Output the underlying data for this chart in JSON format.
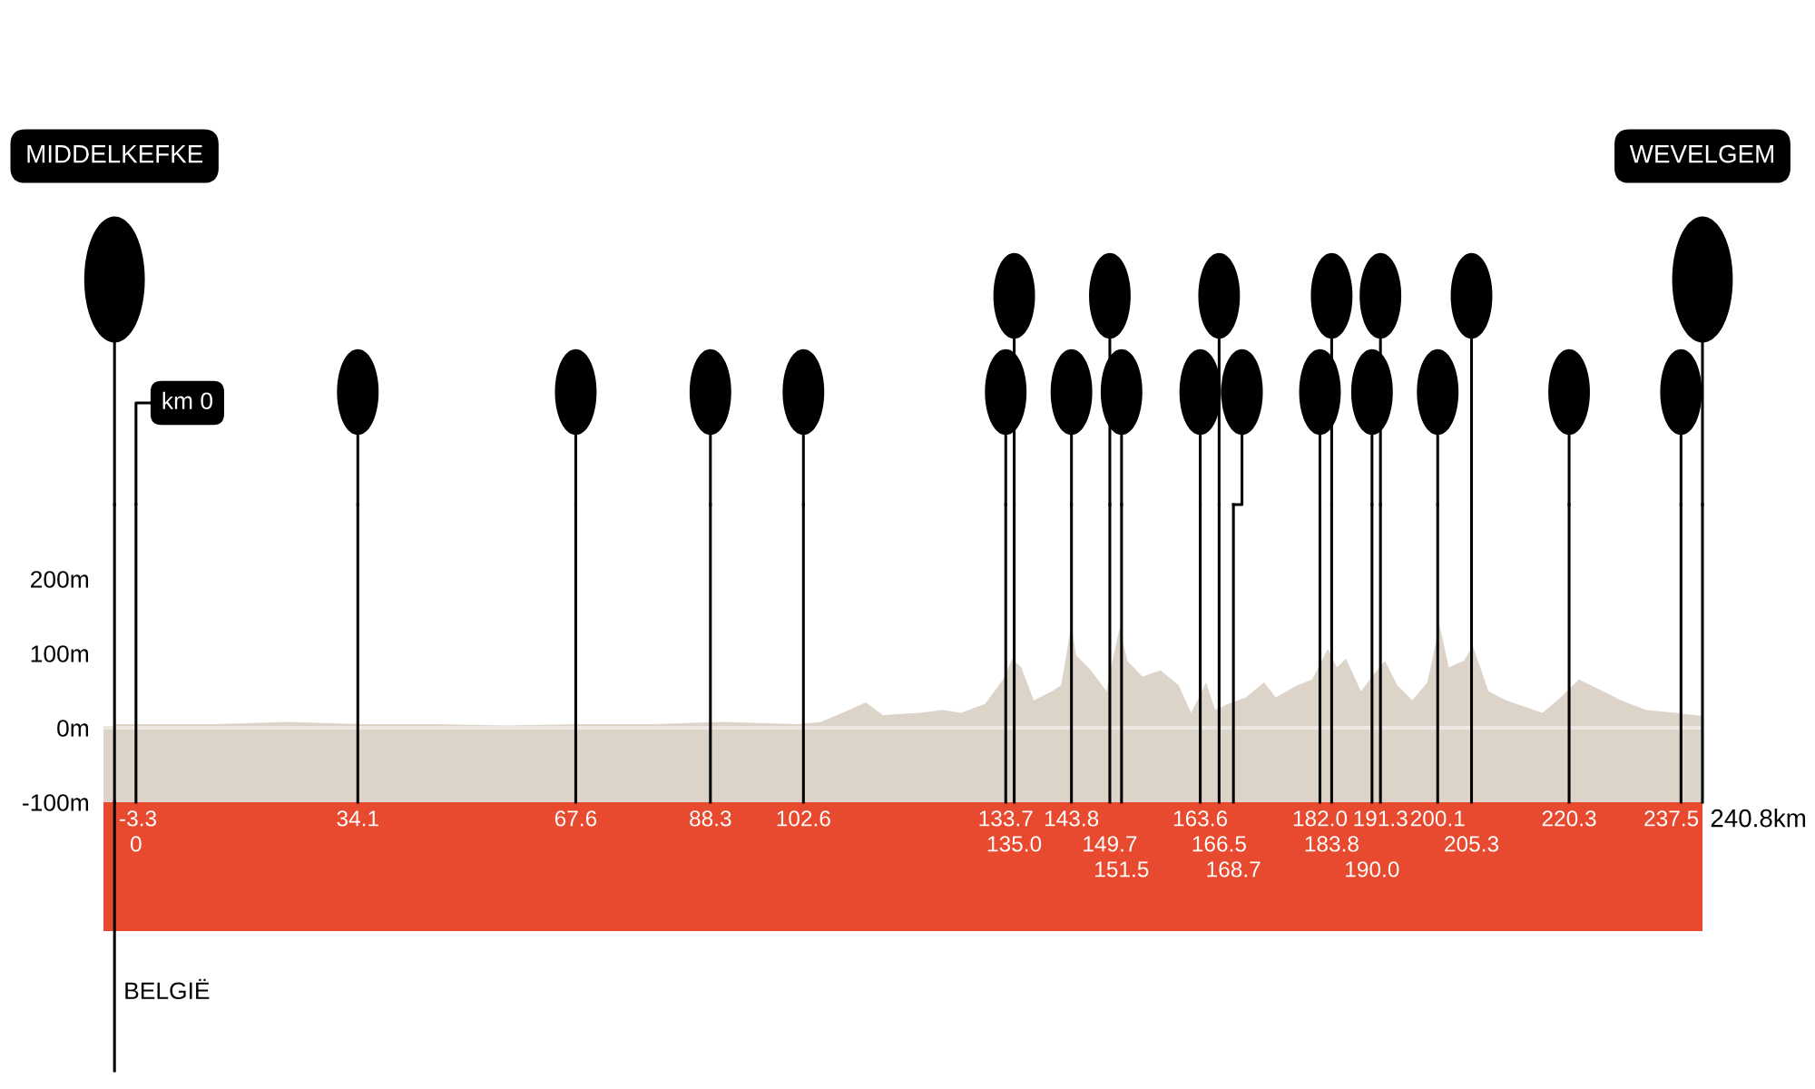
{
  "chart_data": {
    "type": "area",
    "color": "#dcd3c9",
    "x": [
      -3.3,
      0,
      12.2,
      23.4,
      34.6,
      45.8,
      56.9,
      68.1,
      79.3,
      90.5,
      101.6,
      105.3,
      108.6,
      112.2,
      114.8,
      120.4,
      124.0,
      126.8,
      130.5,
      133.3,
      134.7,
      136.1,
      138.0,
      140.8,
      142.2,
      143.8,
      144.5,
      146.8,
      149.2,
      150.1,
      151.2,
      152.4,
      154.7,
      157.5,
      160.3,
      162.2,
      164.5,
      165.9,
      167.8,
      170.6,
      173.4,
      175.2,
      178.5,
      180.8,
      183.2,
      184.6,
      186.0,
      188.3,
      191.1,
      192.0,
      193.9,
      196.2,
      198.5,
      200.4,
      201.8,
      204.1,
      205.5,
      207.9,
      210.6,
      216.2,
      219.0,
      221.8,
      224.6,
      228.3,
      232.1,
      236.7,
      240.8
    ],
    "values": [
      5,
      5,
      5,
      8,
      5,
      5,
      3,
      5,
      5,
      8,
      5,
      8,
      20,
      34,
      17,
      20,
      24,
      20,
      32,
      65,
      93,
      81,
      37,
      49,
      57,
      138,
      98,
      77,
      49,
      90,
      134,
      90,
      69,
      77,
      57,
      20,
      61,
      24,
      32,
      41,
      61,
      41,
      57,
      65,
      106,
      81,
      93,
      49,
      81,
      90,
      57,
      37,
      61,
      138,
      81,
      90,
      110,
      49,
      37,
      20,
      41,
      65,
      53,
      37,
      24,
      20,
      16
    ],
    "xlim": [
      -5,
      240.8
    ],
    "ylim": [
      -100,
      300
    ],
    "yticks": [
      {
        "value": -100,
        "label": "-100m"
      },
      {
        "value": 0,
        "label": "0m"
      },
      {
        "value": 100,
        "label": "100m"
      },
      {
        "value": 200,
        "label": "200m"
      }
    ],
    "tick_labels": "y",
    "bands": [
      {
        "axis": "y",
        "from": -100,
        "to": 0,
        "color": "#dcd3c9"
      }
    ],
    "ref_lines": [
      {
        "axis": "y",
        "value": 0,
        "color": "#ece7e1"
      },
      {
        "axis": "x",
        "value": -3.3,
        "label": "-3.3"
      },
      {
        "axis": "x",
        "value": 0,
        "label": "0"
      },
      {
        "axis": "x",
        "value": 34.1,
        "label": "34.1"
      },
      {
        "axis": "x",
        "value": 67.6,
        "label": "67.6"
      },
      {
        "axis": "x",
        "value": 88.3,
        "label": "88.3"
      },
      {
        "axis": "x",
        "value": 102.6,
        "label": "102.6"
      },
      {
        "axis": "x",
        "value": 133.7,
        "label": "133.7"
      },
      {
        "axis": "x",
        "value": 135.0,
        "label": "135.0"
      },
      {
        "axis": "x",
        "value": 143.8,
        "label": "143.8"
      },
      {
        "axis": "x",
        "value": 149.7,
        "label": "149.7"
      },
      {
        "axis": "x",
        "value": 151.5,
        "label": "151.5"
      },
      {
        "axis": "x",
        "value": 163.6,
        "label": "163.6"
      },
      {
        "axis": "x",
        "value": 166.5,
        "label": "166.5"
      },
      {
        "axis": "x",
        "value": 168.7,
        "label": "168.7"
      },
      {
        "axis": "x",
        "value": 182.0,
        "label": "182.0"
      },
      {
        "axis": "x",
        "value": 183.8,
        "label": "183.8"
      },
      {
        "axis": "x",
        "value": 190.0,
        "label": "190.0"
      },
      {
        "axis": "x",
        "value": 191.3,
        "label": "191.3"
      },
      {
        "axis": "x",
        "value": 200.1,
        "label": "200.1"
      },
      {
        "axis": "x",
        "value": 205.3,
        "label": "205.3"
      },
      {
        "axis": "x",
        "value": 220.3,
        "label": "220.3"
      },
      {
        "axis": "x",
        "value": 237.5,
        "label": "237.5"
      },
      {
        "axis": "x",
        "value": 240.8,
        "label": "240.8km"
      }
    ],
    "annotations": [
      "MIDDELKEFKE",
      {
        "text": "km 0",
        "x": 0,
        "y": 300
      },
      "WEVELGEM",
      "BELGIË"
    ]
  }
}
